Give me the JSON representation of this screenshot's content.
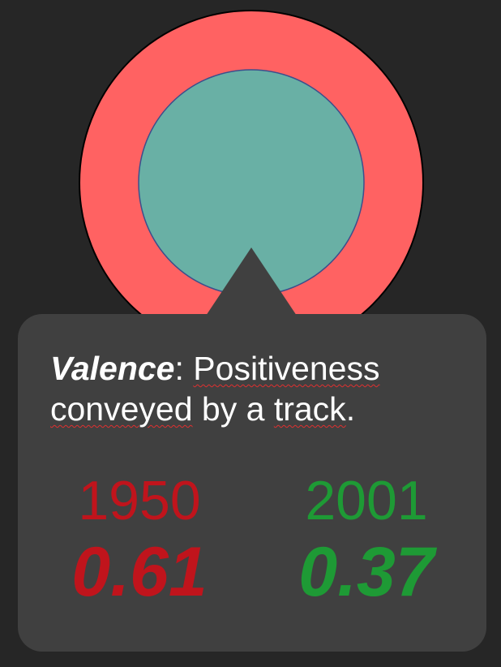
{
  "chart_data": {
    "type": "pie",
    "metric": "Valence",
    "series": [
      {
        "name": "1950",
        "value": 0.61,
        "color": "#ff6262"
      },
      {
        "name": "2001",
        "value": 0.37,
        "color": "#69b0a5"
      }
    ]
  },
  "tooltip": {
    "term": "Valence",
    "colon": ":",
    "word1": "Positiveness",
    "word2": "conveyed",
    "rest": "by a",
    "word3": "track",
    "period": "."
  },
  "stats": [
    {
      "year": "1950",
      "value": "0.61",
      "color": "#c0141c"
    },
    {
      "year": "2001",
      "value": "0.37",
      "color": "#1e9a35"
    }
  ],
  "colors": {
    "background": "#262626",
    "tooltip_bg": "#404040",
    "outer_ring": "#ff6262",
    "inner_disc": "#69b0a5"
  }
}
